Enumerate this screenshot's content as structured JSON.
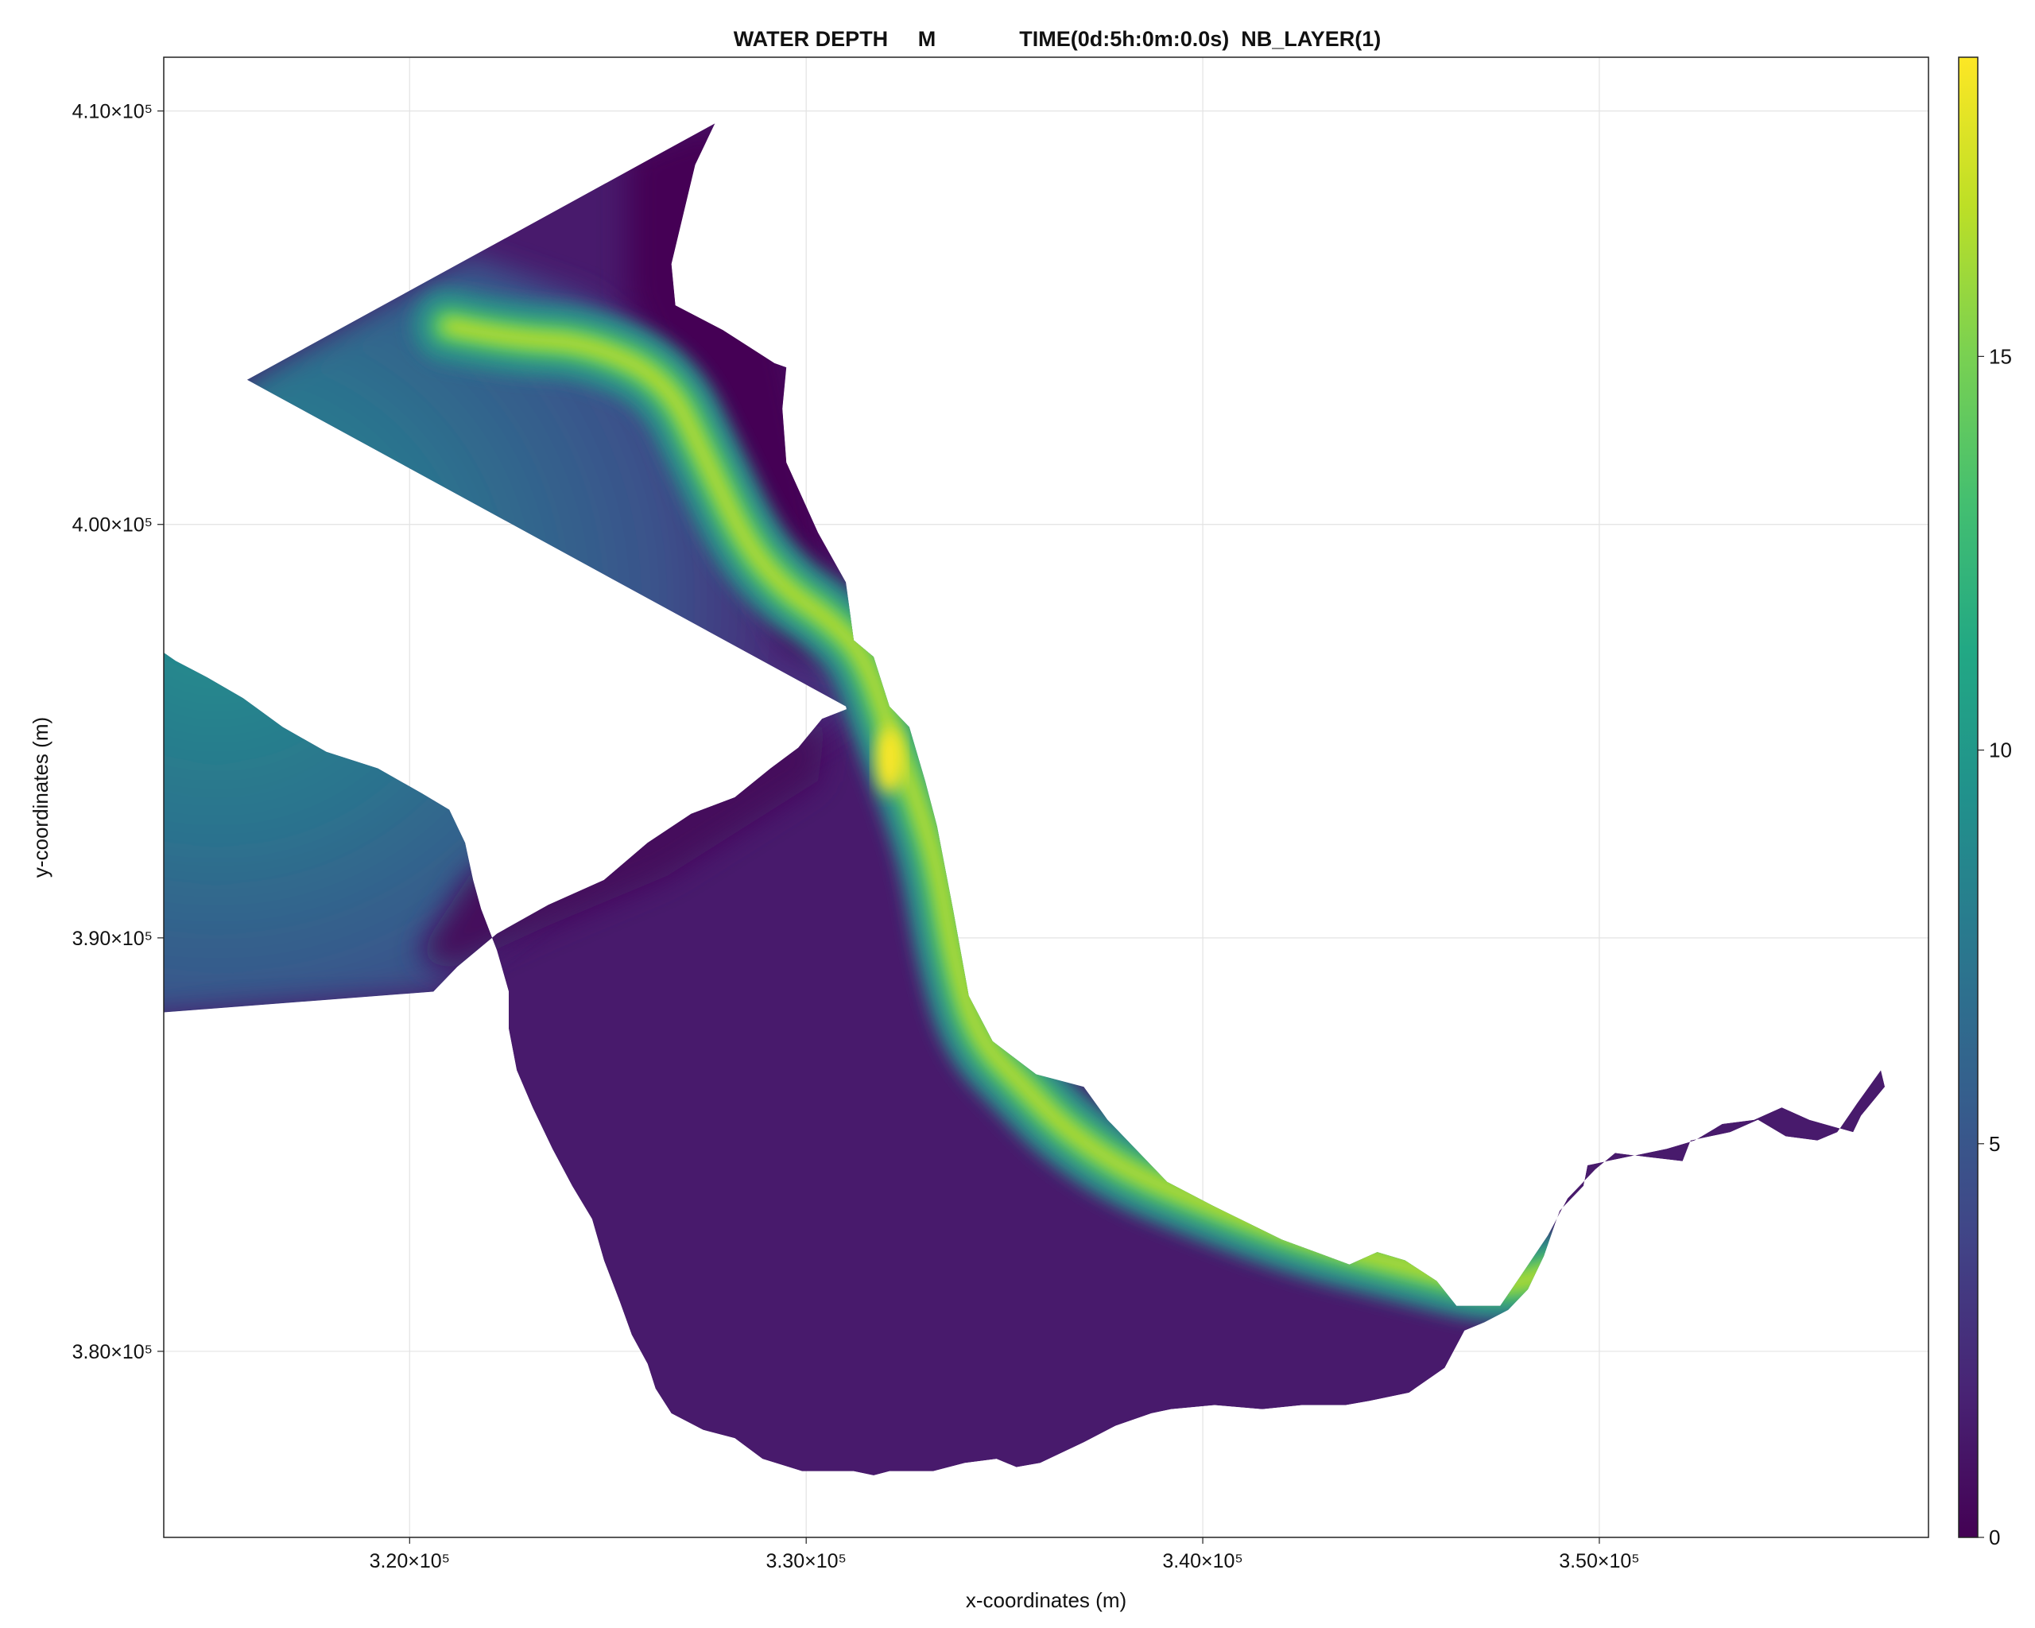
{
  "chart_data": {
    "type": "heatmap",
    "title": "WATER DEPTH     M              TIME(0d:5h:0m:0.0s)  NB_LAYER(1)",
    "xlabel": "x-coordinates (m)",
    "ylabel": "y-coordinates (m)",
    "xlim": [
      313800,
      358300
    ],
    "ylim": [
      375500,
      411300
    ],
    "x_ticks": [
      {
        "value": 320000,
        "label": "3.20×10⁵"
      },
      {
        "value": 330000,
        "label": "3.30×10⁵"
      },
      {
        "value": 340000,
        "label": "3.40×10⁵"
      },
      {
        "value": 350000,
        "label": "3.50×10⁵"
      }
    ],
    "y_ticks": [
      {
        "value": 380000,
        "label": "3.80×10⁵"
      },
      {
        "value": 390000,
        "label": "3.90×10⁵"
      },
      {
        "value": 400000,
        "label": "4.00×10⁵"
      },
      {
        "value": 410000,
        "label": "4.10×10⁵"
      }
    ],
    "grid": true,
    "colorbar": {
      "colormap": "viridis",
      "range": [
        0,
        18.8
      ],
      "ticks": [
        {
          "value": 0,
          "label": "0"
        },
        {
          "value": 5,
          "label": "5"
        },
        {
          "value": 10,
          "label": "10"
        },
        {
          "value": 15,
          "label": "15"
        }
      ],
      "position": "right"
    },
    "domain": {
      "estuary_outline": [
        [
          315900,
          403500
        ],
        [
          327700,
          409700
        ],
        [
          327200,
          408700
        ],
        [
          326600,
          406300
        ],
        [
          326700,
          405300
        ],
        [
          327900,
          404700
        ],
        [
          329200,
          403900
        ],
        [
          329500,
          403800
        ],
        [
          329400,
          402800
        ],
        [
          329500,
          401500
        ],
        [
          330300,
          399800
        ],
        [
          331000,
          398600
        ],
        [
          331200,
          397200
        ],
        [
          331700,
          396800
        ],
        [
          332100,
          395600
        ],
        [
          332600,
          395100
        ],
        [
          333000,
          393800
        ],
        [
          333300,
          392700
        ],
        [
          333700,
          390700
        ],
        [
          334100,
          388600
        ],
        [
          334700,
          387500
        ],
        [
          335800,
          386700
        ],
        [
          337000,
          386400
        ],
        [
          337600,
          385600
        ],
        [
          339100,
          384100
        ],
        [
          340300,
          383500
        ],
        [
          342000,
          382700
        ],
        [
          343700,
          382100
        ],
        [
          344400,
          382400
        ],
        [
          345100,
          382200
        ],
        [
          345900,
          381700
        ],
        [
          346400,
          381100
        ],
        [
          347500,
          381100
        ],
        [
          348000,
          381800
        ],
        [
          348700,
          382800
        ],
        [
          349200,
          383700
        ],
        [
          349900,
          384400
        ],
        [
          350400,
          384800
        ],
        [
          351200,
          384700
        ],
        [
          352100,
          384600
        ],
        [
          352300,
          385100
        ],
        [
          353300,
          385300
        ],
        [
          354000,
          385600
        ],
        [
          354700,
          385200
        ],
        [
          355500,
          385100
        ],
        [
          356000,
          385300
        ],
        [
          356500,
          386000
        ],
        [
          357100,
          386800
        ],
        [
          357200,
          386400
        ],
        [
          356600,
          385700
        ],
        [
          356400,
          385300
        ],
        [
          355300,
          385600
        ],
        [
          354600,
          385900
        ],
        [
          353900,
          385600
        ],
        [
          353100,
          385500
        ],
        [
          352400,
          385100
        ],
        [
          351700,
          384900
        ],
        [
          350700,
          384700
        ],
        [
          349700,
          384500
        ],
        [
          349600,
          384000
        ],
        [
          349000,
          383400
        ],
        [
          348600,
          382300
        ],
        [
          348200,
          381500
        ],
        [
          347700,
          381000
        ],
        [
          347100,
          380700
        ],
        [
          346600,
          380500
        ],
        [
          346100,
          379600
        ],
        [
          345200,
          379000
        ],
        [
          344200,
          378800
        ],
        [
          343600,
          378700
        ],
        [
          342500,
          378700
        ],
        [
          341500,
          378600
        ],
        [
          340300,
          378700
        ],
        [
          339200,
          378600
        ],
        [
          338700,
          378500
        ],
        [
          337800,
          378200
        ],
        [
          337000,
          377800
        ],
        [
          335900,
          377300
        ],
        [
          335300,
          377200
        ],
        [
          334800,
          377400
        ],
        [
          334000,
          377300
        ],
        [
          333200,
          377100
        ],
        [
          332100,
          377100
        ],
        [
          331700,
          377000
        ],
        [
          331200,
          377100
        ],
        [
          329900,
          377100
        ],
        [
          328900,
          377400
        ],
        [
          328200,
          377900
        ],
        [
          327400,
          378100
        ],
        [
          326600,
          378500
        ],
        [
          326200,
          379100
        ],
        [
          326000,
          379700
        ],
        [
          325600,
          380400
        ],
        [
          325300,
          381200
        ],
        [
          324900,
          382200
        ],
        [
          324600,
          383200
        ],
        [
          324100,
          384000
        ],
        [
          323600,
          384900
        ],
        [
          323100,
          385900
        ],
        [
          322700,
          386800
        ],
        [
          322500,
          387800
        ],
        [
          322500,
          388700
        ],
        [
          322200,
          389700
        ],
        [
          321800,
          390700
        ],
        [
          321600,
          391400
        ],
        [
          321400,
          392300
        ],
        [
          321000,
          393100
        ],
        [
          320300,
          393500
        ],
        [
          319200,
          394100
        ],
        [
          317900,
          394500
        ],
        [
          316800,
          395100
        ],
        [
          315800,
          395800
        ],
        [
          314900,
          396300
        ],
        [
          314100,
          396700
        ],
        [
          313200,
          397300
        ],
        [
          312500,
          398000
        ],
        [
          312000,
          398500
        ],
        [
          311500,
          388500
        ],
        [
          311100,
          388000
        ],
        [
          320600,
          388700
        ],
        [
          321200,
          389300
        ],
        [
          322200,
          390100
        ],
        [
          323500,
          390800
        ],
        [
          324900,
          391400
        ],
        [
          326000,
          392300
        ],
        [
          327100,
          393000
        ],
        [
          328200,
          393400
        ],
        [
          329100,
          394100
        ],
        [
          329800,
          394600
        ],
        [
          330400,
          395300
        ],
        [
          331200,
          395600
        ],
        [
          331100,
          395200
        ],
        [
          331000,
          395600
        ]
      ],
      "deep_channel_path": [
        [
          321000,
          404800
        ],
        [
          322500,
          404500
        ],
        [
          324500,
          404400
        ],
        [
          326500,
          403500
        ],
        [
          327500,
          401500
        ],
        [
          328500,
          399500
        ],
        [
          329500,
          398400
        ],
        [
          330600,
          397700
        ],
        [
          331500,
          396800
        ],
        [
          332200,
          394800
        ],
        [
          332800,
          393300
        ],
        [
          333300,
          391800
        ],
        [
          333700,
          389600
        ],
        [
          334300,
          387600
        ],
        [
          335500,
          386400
        ],
        [
          336500,
          385400
        ],
        [
          338000,
          384400
        ],
        [
          340000,
          383600
        ],
        [
          342500,
          382700
        ],
        [
          345000,
          382100
        ],
        [
          347500,
          381500
        ],
        [
          349000,
          382000
        ]
      ]
    },
    "depth_summary": {
      "max_depth": 18.8,
      "max_depth_location": [
        332100,
        394300
      ],
      "min_depth": 0
    }
  }
}
